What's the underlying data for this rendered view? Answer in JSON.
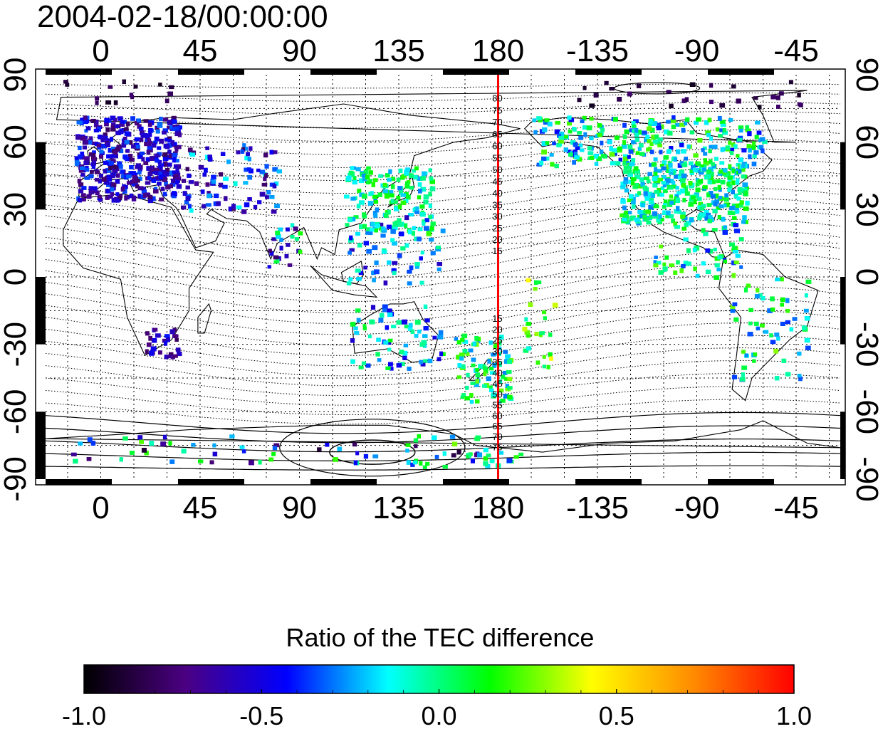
{
  "timestamp": "2004-02-18/00:00:00",
  "colorbar": {
    "title": "Ratio of the TEC difference",
    "min": -1.0,
    "max": 1.0,
    "tick_labels": [
      "-1.0",
      "-0.5",
      "0.0",
      "0.5",
      "1.0"
    ],
    "colors": [
      "#000000",
      "#4b0082",
      "#0000ff",
      "#00ffff",
      "#00ff00",
      "#ffff00",
      "#ff8c00",
      "#ff0000"
    ]
  },
  "map": {
    "projection": "equirectangular",
    "lon_range": [
      -25,
      335
    ],
    "lat_range": [
      -90,
      90
    ],
    "top_axis_labels": [
      "0",
      "45",
      "90",
      "135",
      "180",
      "-135",
      "-90",
      "-45"
    ],
    "bottom_axis_labels": [
      "0",
      "45",
      "90",
      "135",
      "180",
      "-135",
      "-90",
      "-45"
    ],
    "left_axis_labels": [
      "90",
      "60",
      "30",
      "0",
      "-30",
      "-60",
      "-90"
    ],
    "right_axis_labels": [
      "90",
      "60",
      "30",
      "0",
      "-30",
      "-60",
      "-90"
    ],
    "grid": true,
    "meridian_line_lon": 180,
    "meridian_line_color": "#ff0000",
    "contour_labels_north": [
      "80",
      "75",
      "70",
      "65",
      "60",
      "55",
      "50",
      "45",
      "40",
      "35",
      "30",
      "25",
      "20",
      "15"
    ],
    "contour_labels_south": [
      "15",
      "20",
      "25",
      "30",
      "35",
      "40",
      "45",
      "50",
      "55",
      "60",
      "65",
      "70",
      "75"
    ]
  }
}
